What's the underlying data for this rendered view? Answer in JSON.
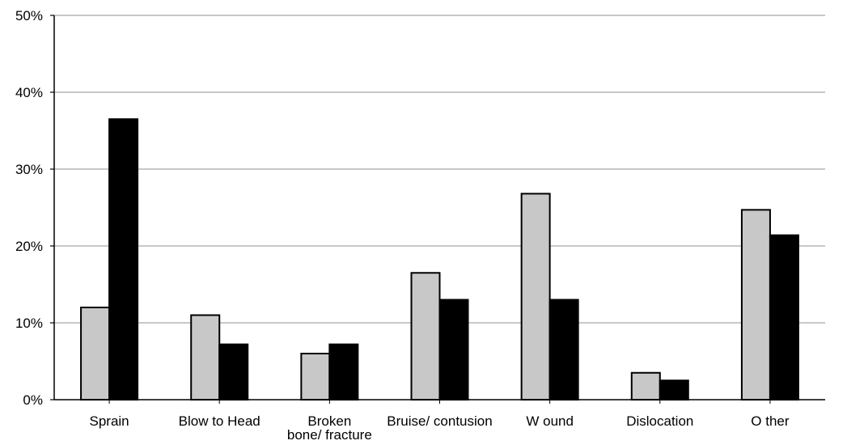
{
  "chart_data": {
    "type": "bar",
    "categories": [
      [
        "Sprain"
      ],
      [
        "Blow to Head"
      ],
      [
        "Broken",
        "bone/ fracture"
      ],
      [
        "Bruise/ contusion"
      ],
      [
        "W ound"
      ],
      [
        "Dislocation"
      ],
      [
        "O ther"
      ]
    ],
    "series": [
      {
        "values": [
          12,
          11,
          6,
          16.5,
          26.8,
          3.5,
          24.7
        ],
        "color": "#c8c8c8"
      },
      {
        "values": [
          36.5,
          7.2,
          7.2,
          13,
          13,
          2.5,
          21.4
        ],
        "color": "#000000"
      }
    ],
    "y_ticks": [
      "0%",
      "10%",
      "20%",
      "30%",
      "40%",
      "50%"
    ],
    "ylim": [
      0,
      50
    ],
    "grid": true,
    "legend": "none",
    "title": "",
    "xlabel": "",
    "ylabel": ""
  }
}
